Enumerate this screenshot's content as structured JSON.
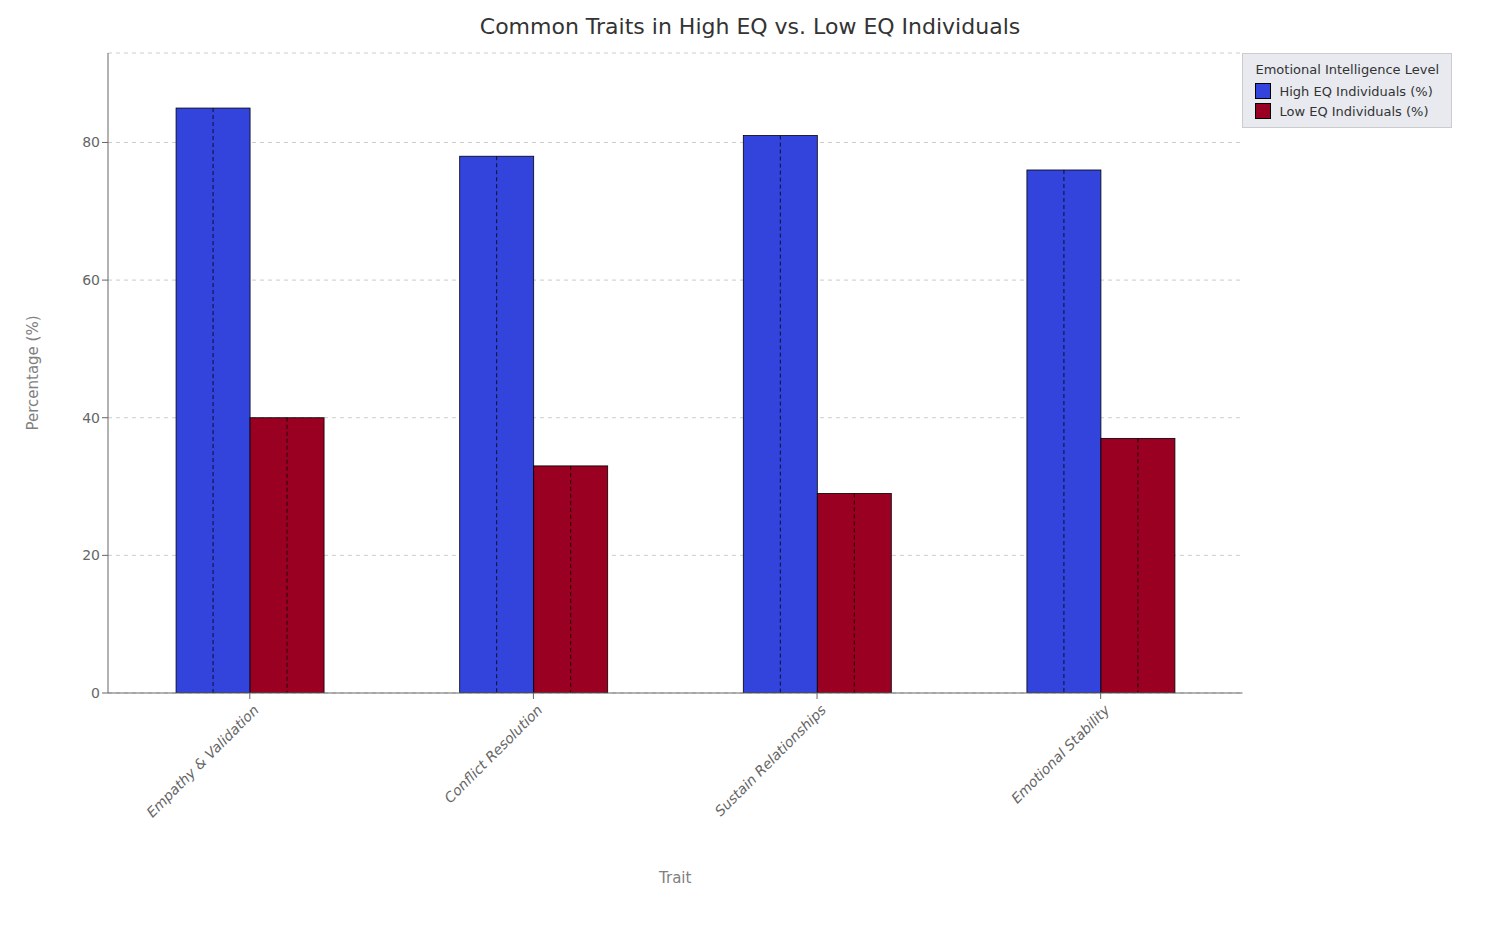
{
  "chart_data": {
    "type": "bar",
    "title": "Common Traits in High EQ vs. Low EQ Individuals",
    "xlabel": "Trait",
    "ylabel": "Percentage (%)",
    "categories": [
      "Empathy & Validation",
      "Conflict Resolution",
      "Sustain Relationships",
      "Emotional Stability"
    ],
    "series": [
      {
        "name": "High EQ Individuals (%)",
        "color": "#3344dd",
        "values": [
          85,
          78,
          81,
          76
        ]
      },
      {
        "name": "Low EQ Individuals (%)",
        "color": "#990022",
        "values": [
          40,
          33,
          29,
          37
        ]
      }
    ],
    "ylim": [
      0,
      93
    ],
    "yticks": [
      0,
      20,
      40,
      60,
      80
    ],
    "grid": true,
    "legend": "upper right",
    "legend_title": "Emotional Intelligence Level"
  }
}
